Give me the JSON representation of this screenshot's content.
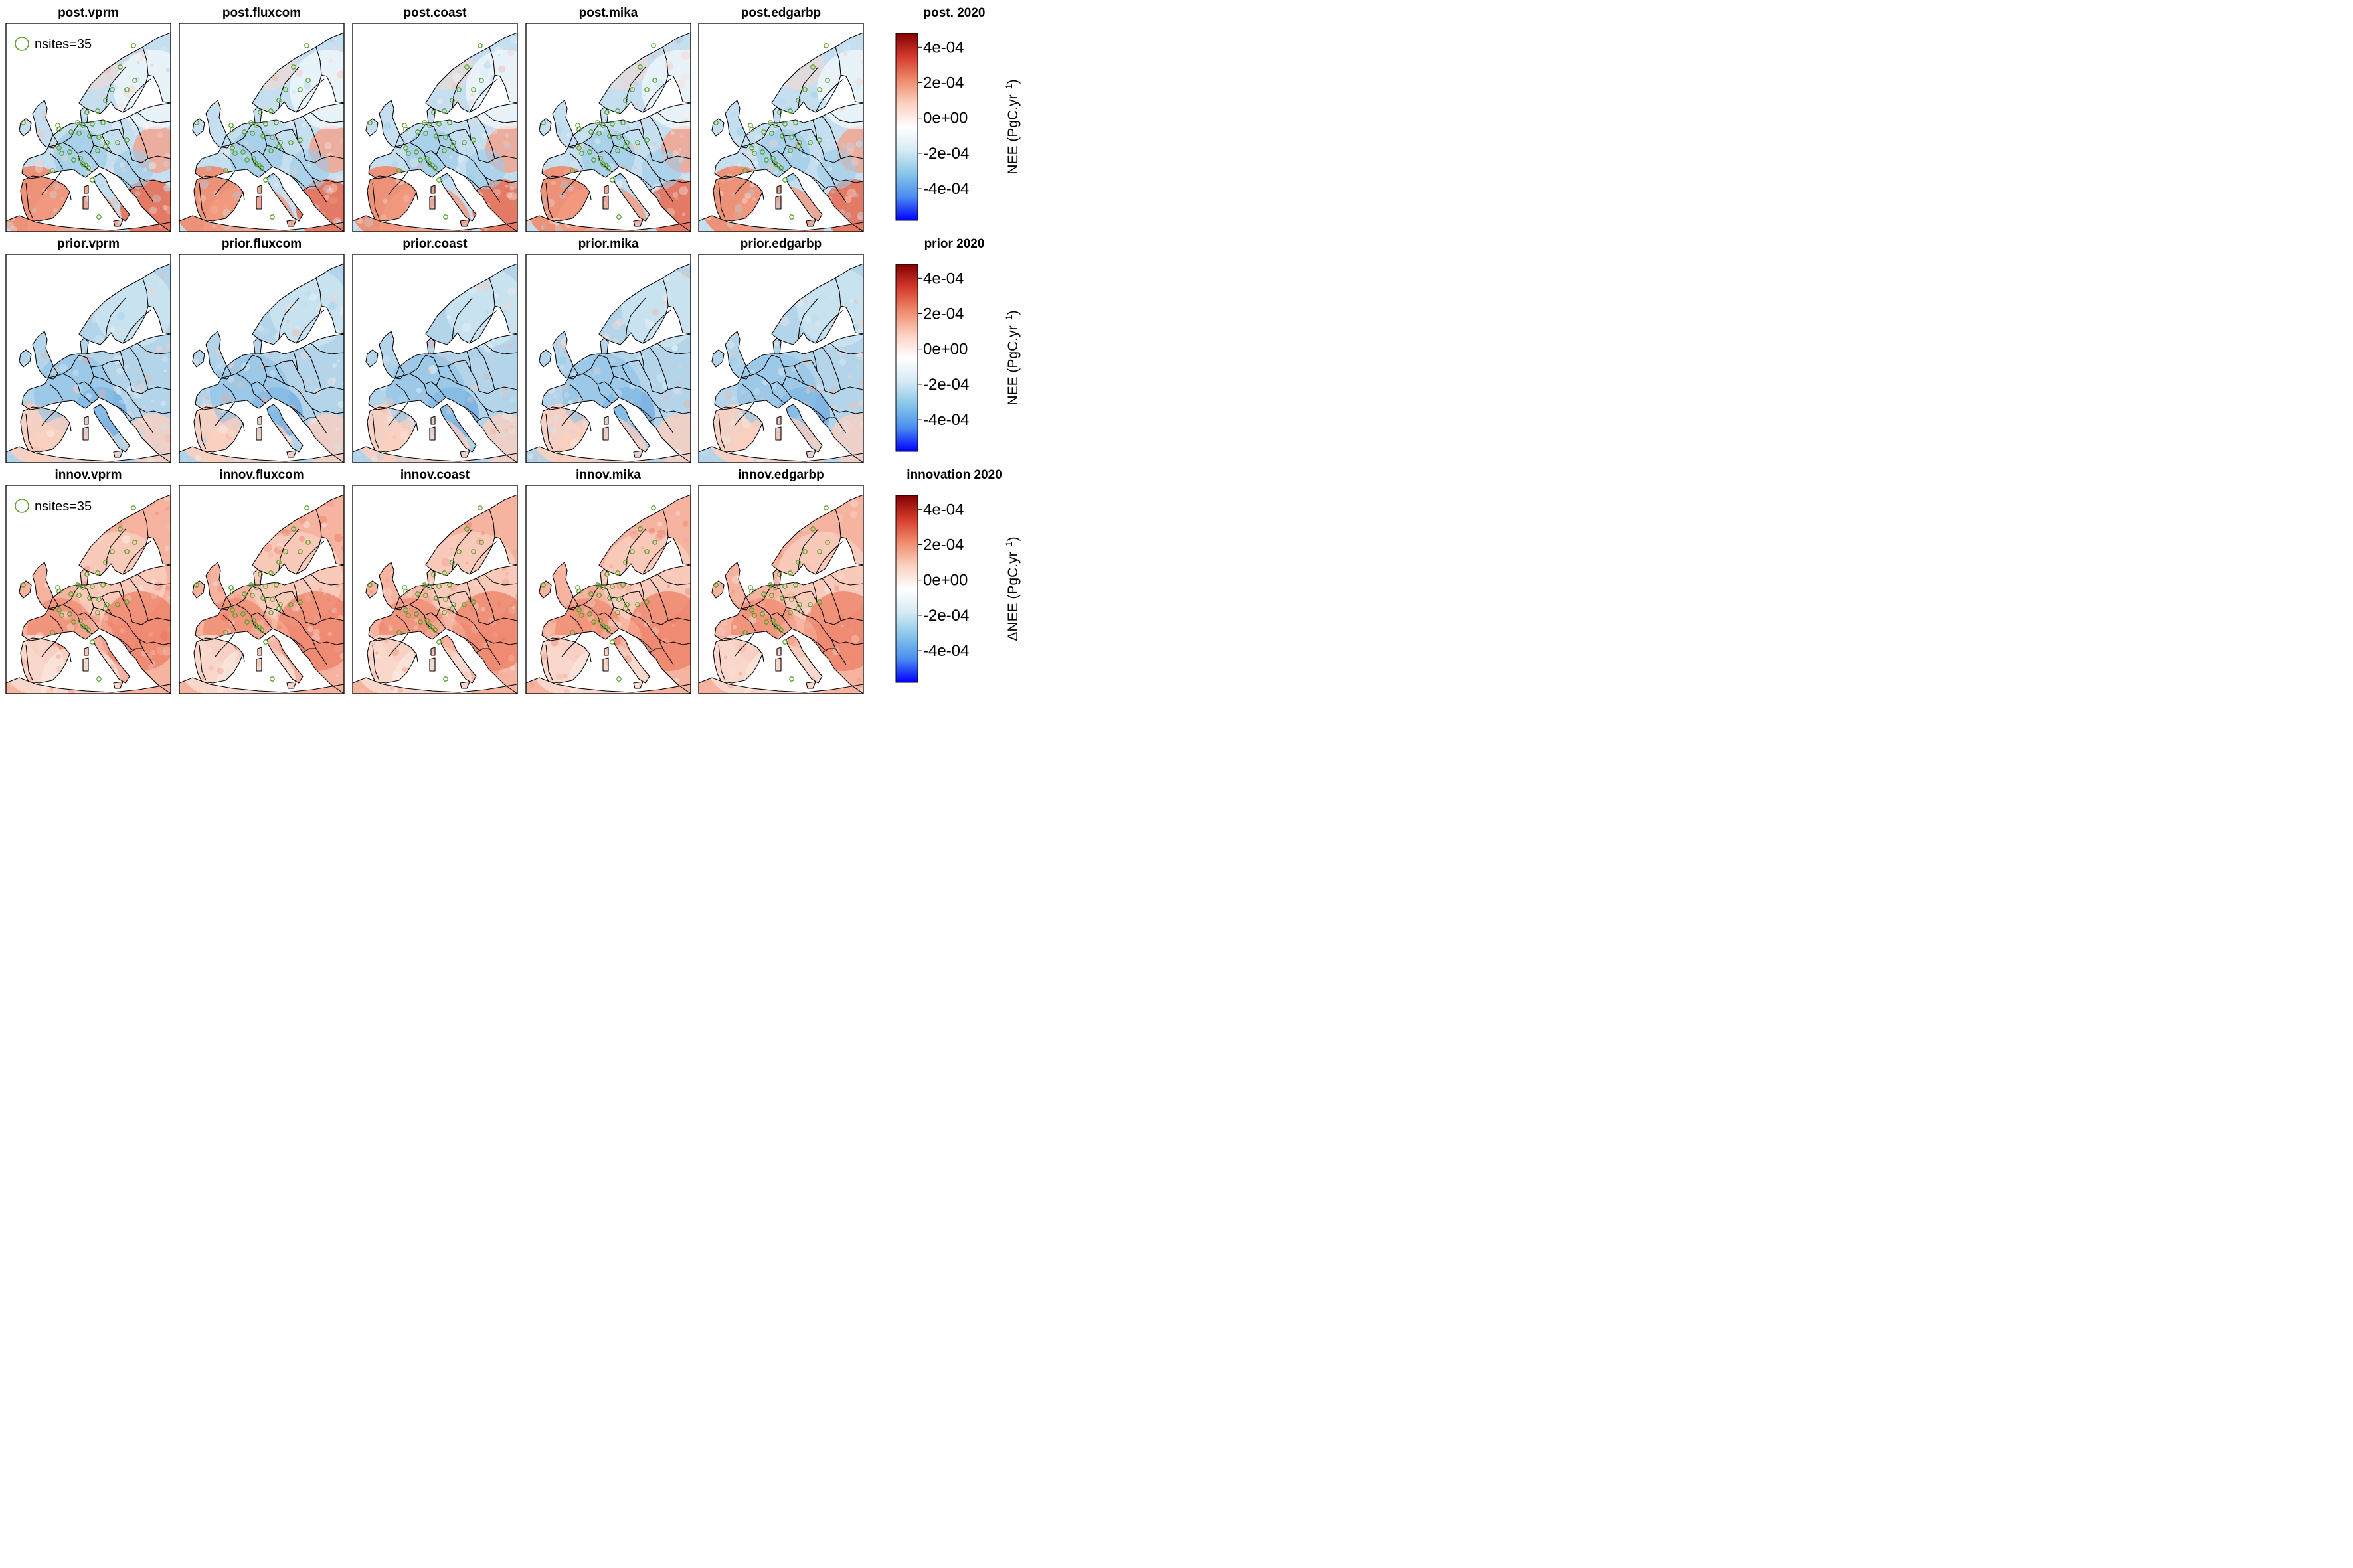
{
  "figure": {
    "panel_titles": [
      [
        "post.vprm",
        "post.fluxcom",
        "post.coast",
        "post.mika",
        "post.edgarbp"
      ],
      [
        "prior.vprm",
        "prior.fluxcom",
        "prior.coast",
        "prior.mika",
        "prior.edgarbp"
      ],
      [
        "innov.vprm",
        "innov.fluxcom",
        "innov.coast",
        "innov.mika",
        "innov.edgarbp"
      ]
    ],
    "colorbars": [
      {
        "title": "post. 2020",
        "label": "NEE (PgC.yr",
        "unit_exponent": "−1",
        "label_close": ")"
      },
      {
        "title": "prior 2020",
        "label": "NEE (PgC.yr",
        "unit_exponent": "−1",
        "label_close": ")"
      },
      {
        "title": "innovation 2020",
        "label": "ΔNEE (PgC.yr",
        "unit_exponent": "−1",
        "label_close": ")"
      }
    ],
    "colorbar_ticks": [
      "4e-04",
      "2e-04",
      "0e+00",
      "-2e-04",
      "-4e-04"
    ],
    "colorbar_tick_values": [
      0.0004,
      0.0002,
      0,
      -0.0002,
      -0.0004
    ],
    "colorbar_range": [
      -0.00058,
      0.00048
    ],
    "colormap": [
      "#0000ff",
      "#4a8cf0",
      "#87c6e8",
      "#d6ebf4",
      "#ffffff",
      "#fbd0c0",
      "#f08a6c",
      "#d33a2c",
      "#820000"
    ],
    "legend": {
      "label": "nsites=35",
      "rows": [
        0,
        2
      ]
    },
    "site_color": "#5aa02c",
    "land_base_colors": {
      "post": "#c6dff0",
      "prior": "#b4d4ea",
      "innov": "#f6b3a0"
    }
  }
}
